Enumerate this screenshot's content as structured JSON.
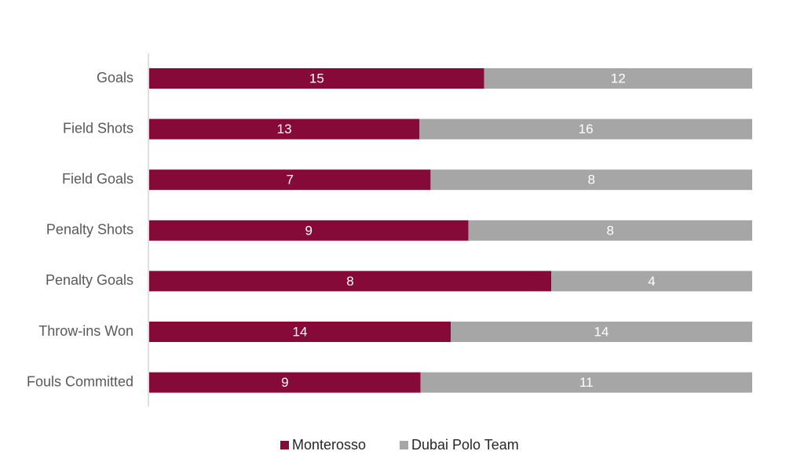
{
  "chart_data": {
    "type": "bar",
    "stacked": "percent",
    "categories": [
      "Goals",
      "Field Shots",
      "Field Goals",
      "Penalty Shots",
      "Penalty Goals",
      "Throw-ins Won",
      "Fouls Committed"
    ],
    "series": [
      {
        "name": "Monterosso",
        "color": "#850a38",
        "values": [
          15,
          13,
          7,
          9,
          8,
          14,
          9
        ]
      },
      {
        "name": "Dubai Polo Team",
        "color": "#a6a6a6",
        "values": [
          12,
          16,
          8,
          8,
          4,
          14,
          11
        ]
      }
    ],
    "legend": "bottom"
  }
}
